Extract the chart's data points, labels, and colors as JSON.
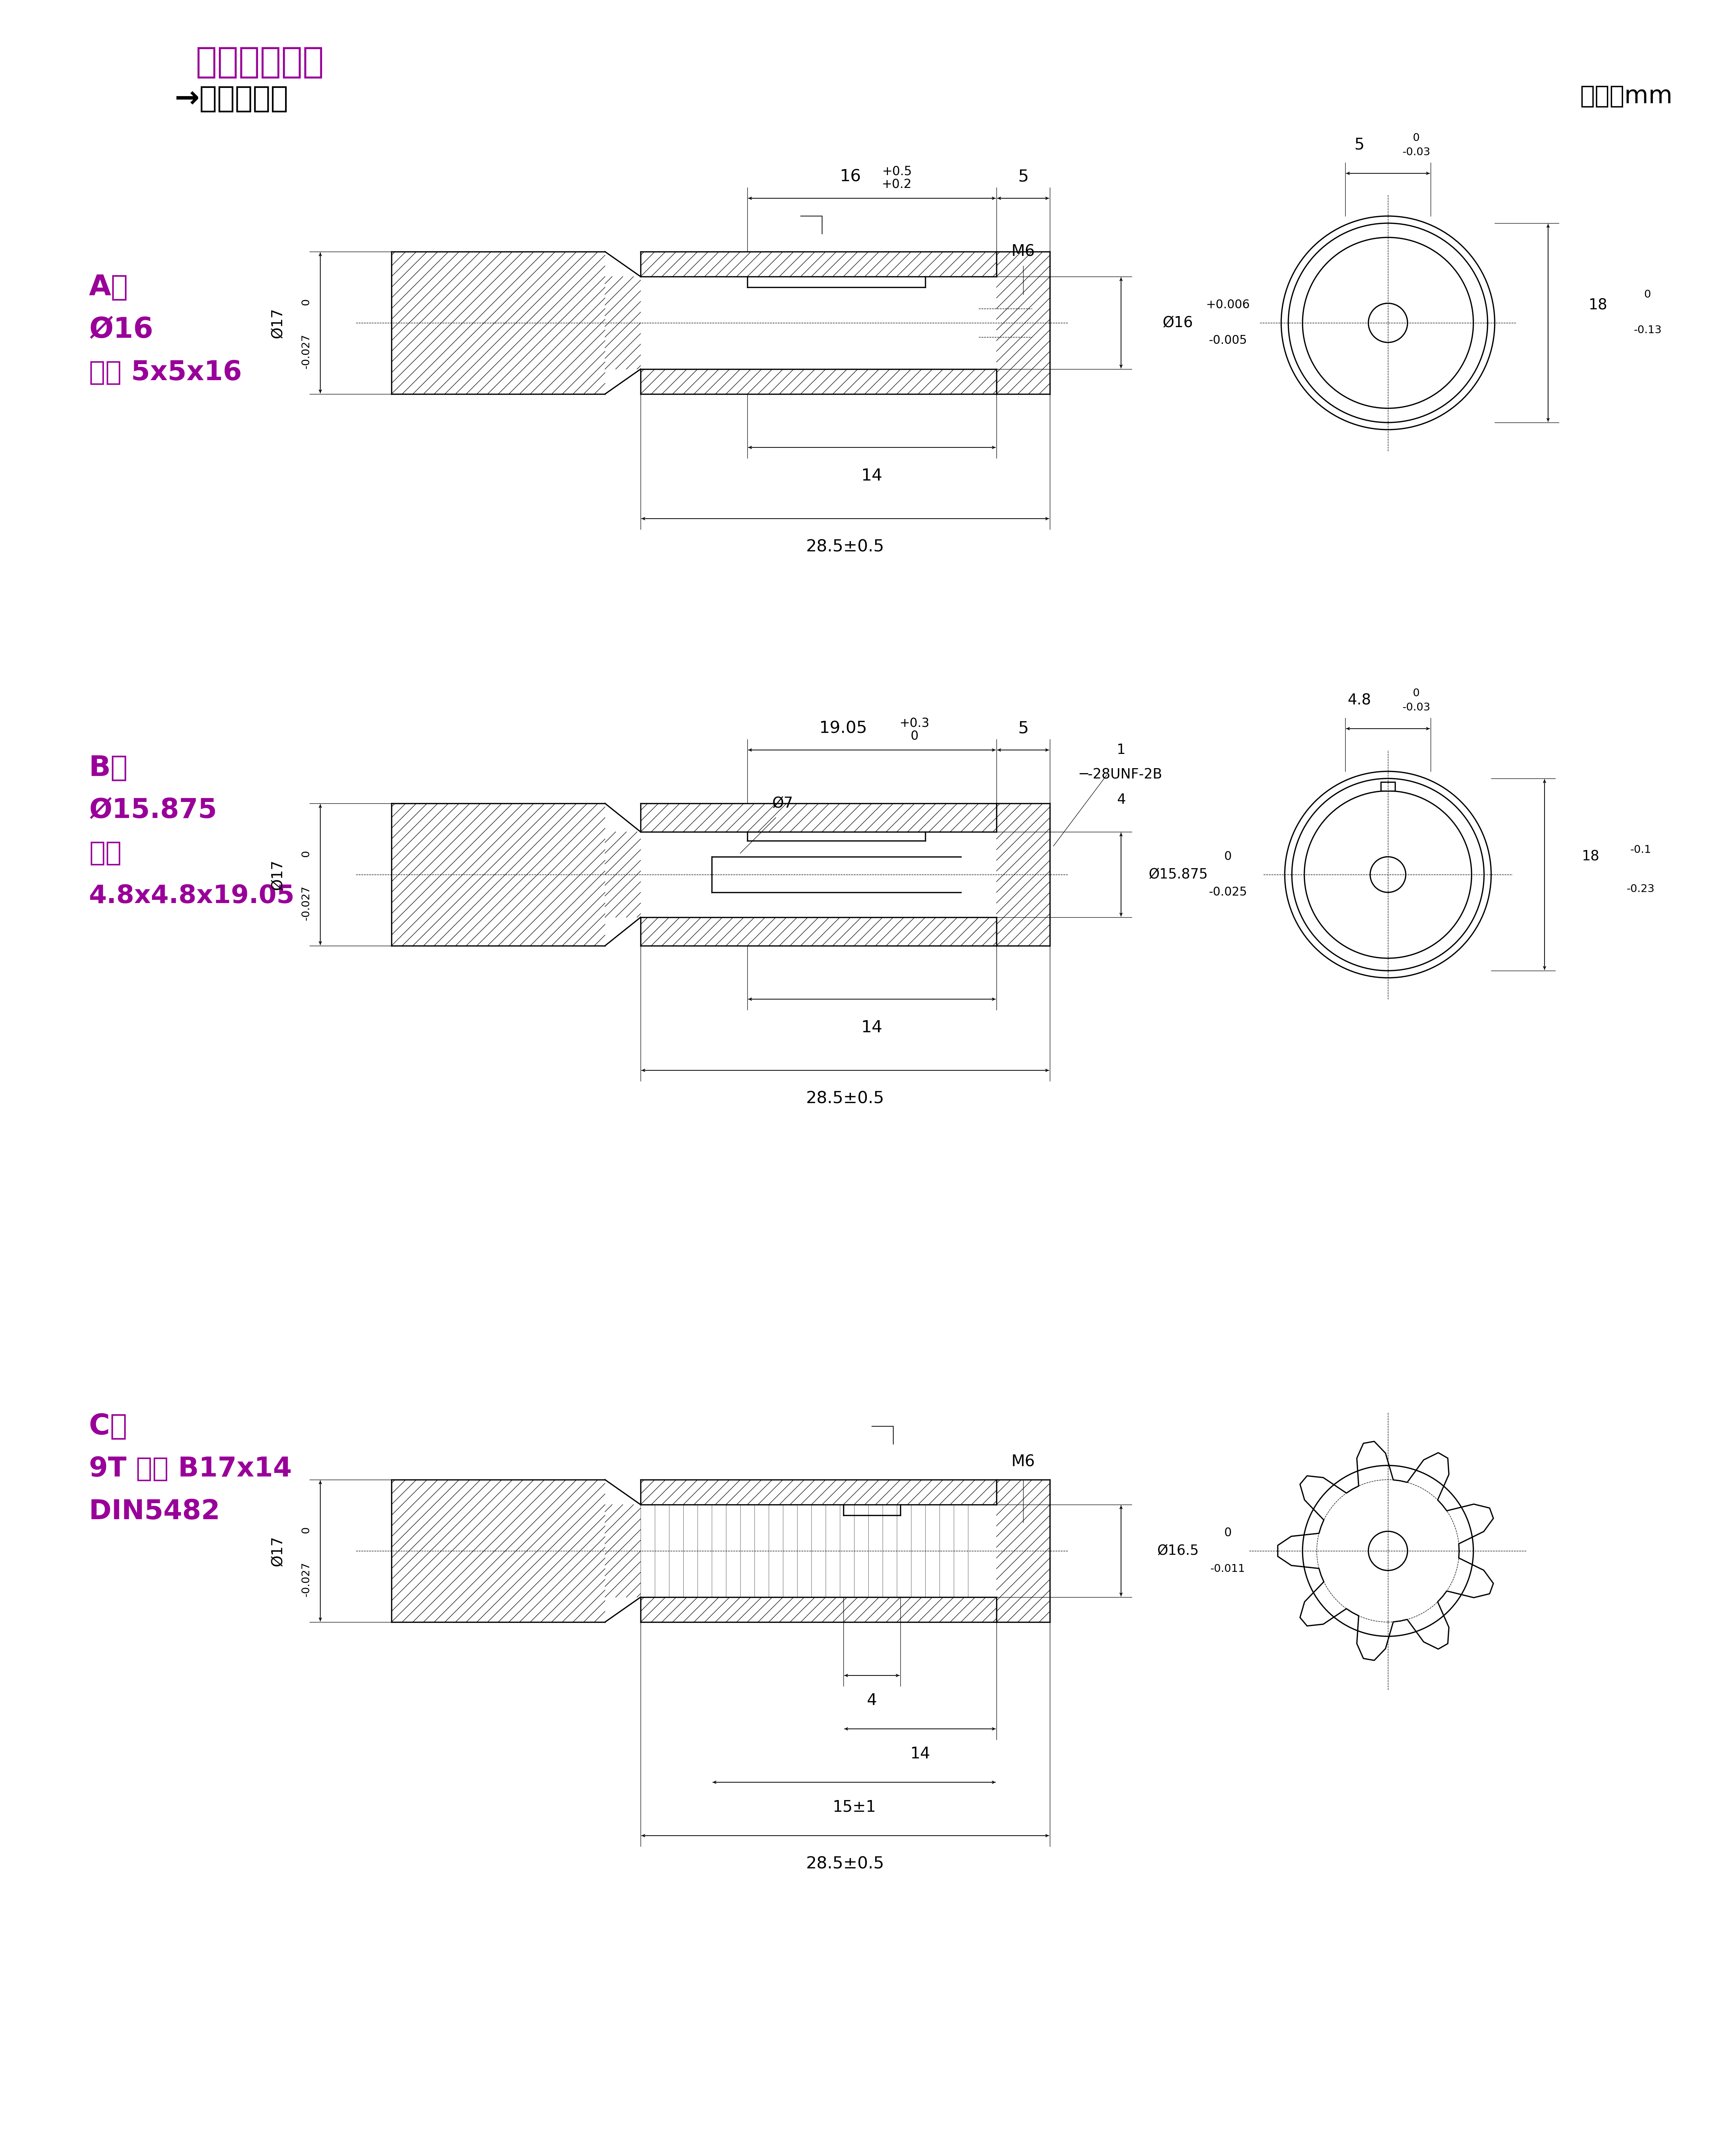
{
  "title": "軸心連接尺寸",
  "subtitle": "→馬達安裝面",
  "unit_label": "單位：mm",
  "magenta": "#990099",
  "black": "#000000",
  "bg": "#ffffff",
  "sections": [
    {
      "label_lines": [
        "A：",
        "Ø16",
        "平鍵 5x5x16"
      ],
      "dim_top1": "16  +0.5\n     +0.2",
      "dim_top2": "5",
      "dim_left": "Ø17   0\n       -0.027",
      "dim_right1": "+0.006",
      "dim_right2": "-0.005",
      "dim_right_main": "Ø16",
      "dim_right_label": "M6",
      "dim_bottom1": "14",
      "dim_bottom2": "28.5±0.5",
      "side_top": "5   0\n      -0.03",
      "side_right": "18   0\n       -0.13"
    },
    {
      "label_lines": [
        "B：",
        "Ø15.875",
        "平鍵",
        "4.8x4.8x19.05"
      ],
      "dim_top1": "19.05  +0.3\n             0",
      "dim_top2": "5",
      "dim_right_label": "1\n─-28UNF-2B\n4",
      "dim_left": "Ø17   0\n       -0.027",
      "dim_center": "Ø7",
      "dim_right_main": "Ø15.875  0\n                  -0.025",
      "dim_bottom1": "14",
      "dim_bottom2": "28.5±0.5",
      "side_top": "4.8   0\n           -0.03",
      "side_right": "18  -0.1\n        -0.23"
    },
    {
      "label_lines": [
        "C：",
        "9T 花鍵 B17x14",
        "DIN5482"
      ],
      "dim_left": "Ø17   0\n       -0.027",
      "dim_right_main": "Ø16.5   0\n              -0.011",
      "dim_right_label": "M6",
      "dim_bottom3": "4",
      "dim_bottom1": "14",
      "dim_bottom2_a": "15±1",
      "dim_bottom2": "28.5±0.5"
    }
  ]
}
